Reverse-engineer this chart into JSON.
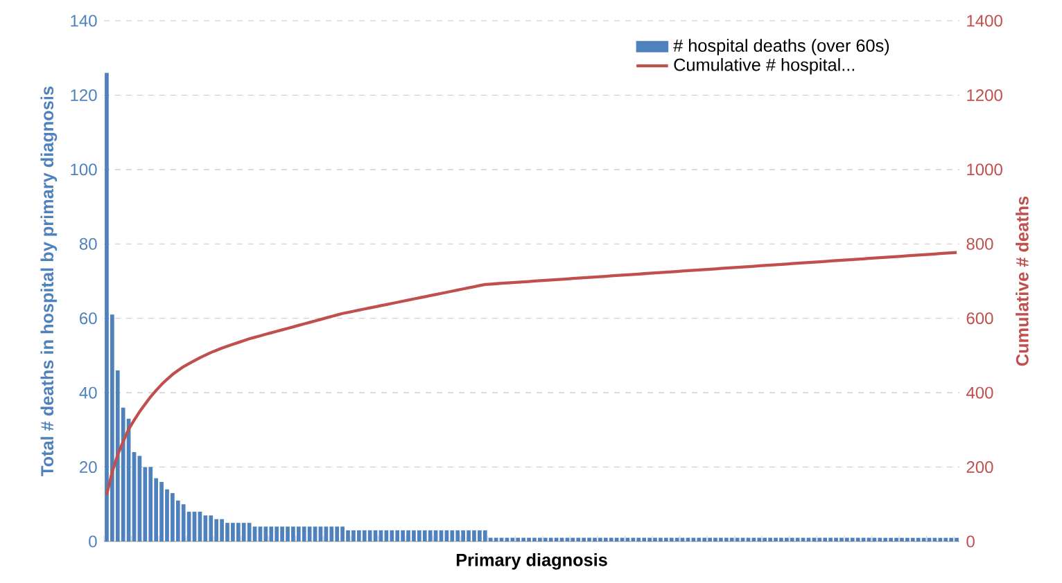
{
  "chart_data": {
    "type": "bar",
    "xlabel": "Primary diagnosis",
    "ylabel": "Total # deaths in hospital by primary diagnosis",
    "y2label": "Cumulative # deaths",
    "categories": [
      null,
      null,
      null,
      null,
      null,
      null,
      null,
      null,
      null,
      null,
      null,
      null,
      null,
      null,
      null,
      null,
      null,
      null,
      null,
      null,
      null,
      null,
      null,
      null,
      null,
      null,
      null,
      null,
      null,
      null,
      null,
      null,
      null,
      null,
      null,
      null,
      null,
      null,
      null,
      null,
      null,
      null,
      null,
      null,
      null,
      null,
      null,
      null,
      null,
      null,
      null,
      null,
      null,
      null,
      null,
      null,
      null,
      null,
      null,
      null,
      null,
      null,
      null,
      null,
      null,
      null,
      null,
      null,
      null,
      null,
      null,
      null,
      null,
      null,
      null,
      null,
      null,
      null,
      null,
      null,
      null,
      null,
      null,
      null,
      null,
      null,
      null,
      null,
      null,
      null,
      null,
      null,
      null,
      null,
      null,
      null,
      null,
      null,
      null,
      null,
      null,
      null,
      null,
      null,
      null,
      null,
      null,
      null,
      null,
      null,
      null,
      null,
      null,
      null,
      null,
      null,
      null,
      null,
      null,
      null,
      null,
      null,
      null,
      null,
      null,
      null,
      null,
      null,
      null,
      null,
      null,
      null,
      null,
      null,
      null,
      null,
      null,
      null,
      null,
      null,
      null,
      null,
      null,
      null,
      null,
      null,
      null,
      null,
      null,
      null,
      null,
      null,
      null,
      null,
      null,
      null
    ],
    "series": [
      {
        "name": "# hospital deaths (over 60s)",
        "color": "#4f81bd",
        "values": [
          126,
          61,
          46,
          36,
          33,
          24,
          23,
          20,
          20,
          17,
          16,
          14,
          13,
          11,
          10,
          8,
          8,
          8,
          7,
          7,
          6,
          6,
          5,
          5,
          5,
          5,
          5,
          4,
          4,
          4,
          4,
          4,
          4,
          4,
          4,
          4,
          4,
          4,
          4,
          4,
          4,
          4,
          4,
          4,
          3,
          3,
          3,
          3,
          3,
          3,
          3,
          3,
          3,
          3,
          3,
          3,
          3,
          3,
          3,
          3,
          3,
          3,
          3,
          3,
          3,
          3,
          3,
          3,
          3,
          3,
          1,
          1,
          1,
          1,
          1,
          1,
          1,
          1,
          1,
          1,
          1,
          1,
          1,
          1,
          1,
          1,
          1,
          1,
          1,
          1,
          1,
          1,
          1,
          1,
          1,
          1,
          1,
          1,
          1,
          1,
          1,
          1,
          1,
          1,
          1,
          1,
          1,
          1,
          1,
          1,
          1,
          1,
          1,
          1,
          1,
          1,
          1,
          1,
          1,
          1,
          1,
          1,
          1,
          1,
          1,
          1,
          1,
          1,
          1,
          1,
          1,
          1,
          1,
          1,
          1,
          1,
          1,
          1,
          1,
          1,
          1,
          1,
          1,
          1,
          1,
          1,
          1,
          1,
          1,
          1,
          1,
          1,
          1,
          1,
          1,
          1
        ]
      },
      {
        "name": "Cumulative # hospital...",
        "type": "line",
        "axis": "y2",
        "color": "#c0504d",
        "values": [
          126,
          187,
          233,
          269,
          302,
          326,
          349,
          369,
          389,
          406,
          422,
          436,
          449,
          460,
          470,
          478,
          486,
          494,
          501,
          508,
          514,
          520,
          525,
          530,
          535,
          540,
          545,
          549,
          553,
          557,
          561,
          565,
          569,
          573,
          577,
          581,
          585,
          589,
          593,
          597,
          601,
          605,
          609,
          613,
          616,
          619,
          622,
          625,
          628,
          631,
          634,
          637,
          640,
          643,
          646,
          649,
          652,
          655,
          658,
          661,
          664,
          667,
          670,
          673,
          676,
          679,
          682,
          685,
          688,
          691,
          692,
          693,
          694,
          695,
          696,
          697,
          698,
          699,
          700,
          701,
          702,
          703,
          704,
          705,
          706,
          707,
          708,
          709,
          710,
          711,
          712,
          713,
          714,
          715,
          716,
          717,
          718,
          719,
          720,
          721,
          722,
          723,
          724,
          725,
          726,
          727,
          728,
          729,
          730,
          731,
          732,
          733,
          734,
          735,
          736,
          737,
          738,
          739,
          740,
          741,
          742,
          743,
          744,
          745,
          746,
          747,
          748,
          749,
          750,
          751,
          752,
          753,
          754,
          755,
          756,
          757,
          758,
          759,
          760,
          761,
          762,
          763,
          764,
          765,
          766,
          767,
          768,
          769,
          770,
          771,
          772,
          773,
          774,
          775,
          776,
          777
        ]
      }
    ],
    "ylim": [
      0,
      140
    ],
    "yticks": [
      0,
      20,
      40,
      60,
      80,
      100,
      120,
      140
    ],
    "y2lim": [
      0,
      1400
    ],
    "y2ticks": [
      0,
      200,
      400,
      600,
      800,
      1000,
      1200,
      1400
    ],
    "grid": "y",
    "legend": "top right"
  }
}
